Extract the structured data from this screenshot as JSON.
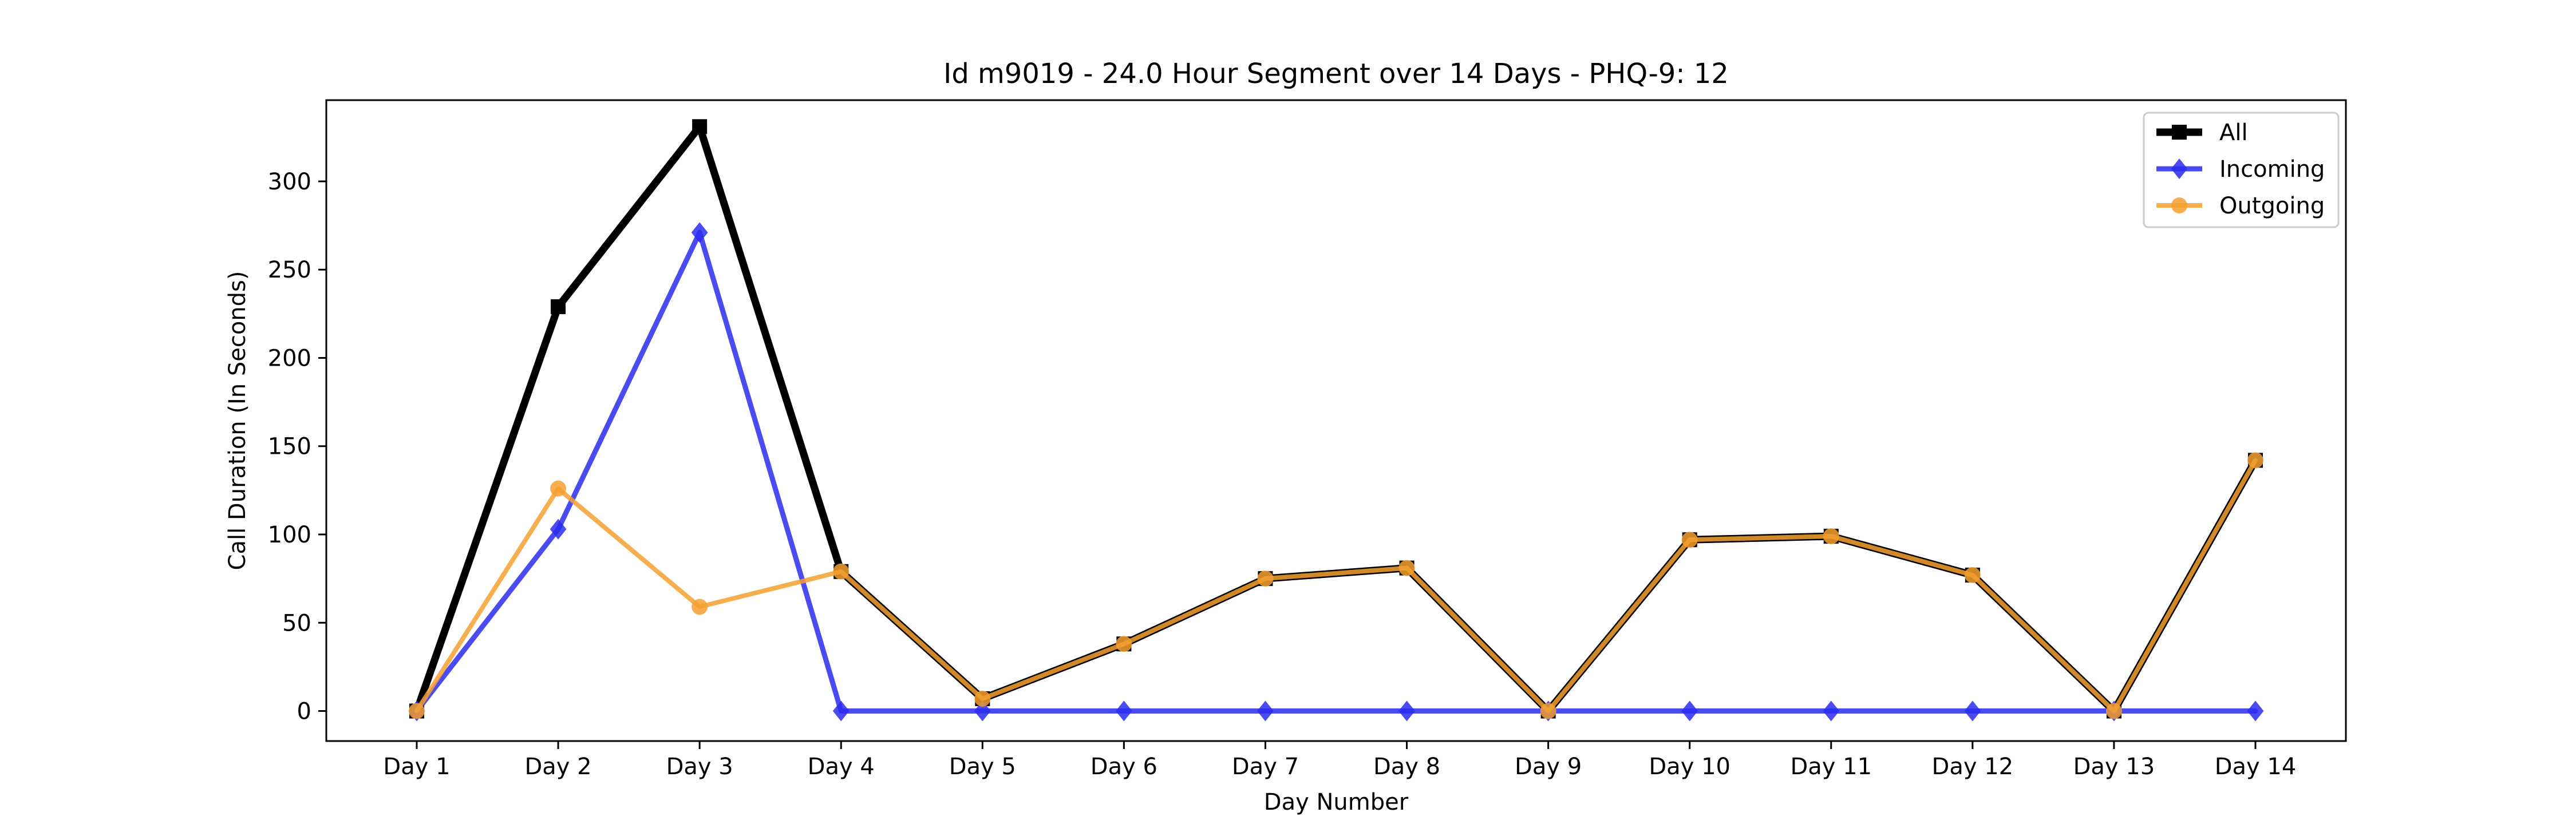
{
  "chart_data": {
    "type": "line",
    "title": "Id m9019 - 24.0 Hour Segment over 14 Days - PHQ-9: 12",
    "xlabel": "Day Number",
    "ylabel": "Call Duration (In Seconds)",
    "categories": [
      "Day 1",
      "Day 2",
      "Day 3",
      "Day 4",
      "Day 5",
      "Day 6",
      "Day 7",
      "Day 8",
      "Day 9",
      "Day 10",
      "Day 11",
      "Day 12",
      "Day 13",
      "Day 14"
    ],
    "ylim": [
      -17,
      346
    ],
    "yticks": [
      0,
      50,
      100,
      150,
      200,
      250,
      300
    ],
    "grid": false,
    "legend": "top-right",
    "series": [
      {
        "name": "All",
        "color": "#000000",
        "marker": "square",
        "values": [
          0,
          229,
          331,
          79,
          7,
          38,
          75,
          81,
          0,
          97,
          99,
          77,
          0,
          142
        ]
      },
      {
        "name": "Incoming",
        "color": "#2b2bf0",
        "marker": "diamond",
        "values": [
          0,
          103,
          271,
          0,
          0,
          0,
          0,
          0,
          0,
          0,
          0,
          0,
          0,
          0
        ]
      },
      {
        "name": "Outgoing",
        "color": "#f5a030",
        "marker": "circle",
        "values": [
          0,
          126,
          59,
          79,
          7,
          38,
          75,
          81,
          0,
          97,
          99,
          77,
          0,
          142
        ]
      }
    ]
  }
}
